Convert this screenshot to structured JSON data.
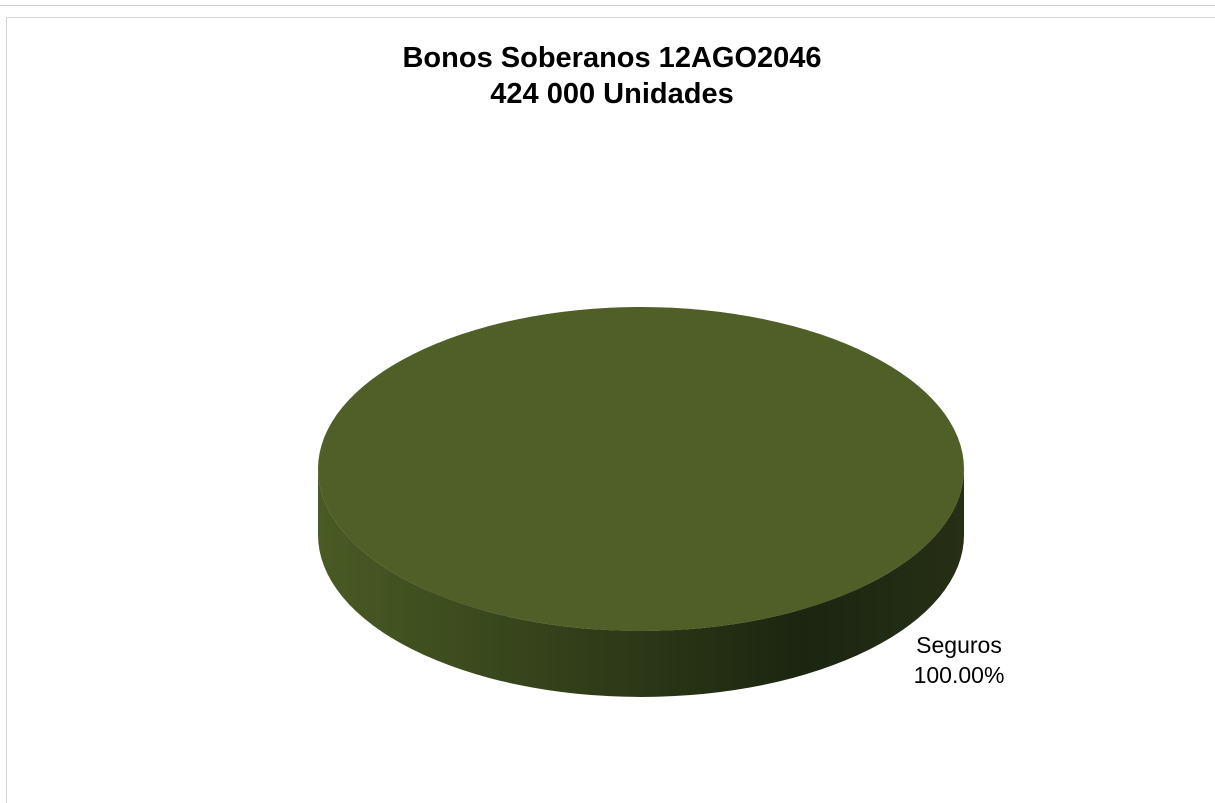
{
  "chart_data": {
    "type": "pie",
    "title": "Bonos Soberanos 12AGO2046",
    "subtitle": "424 000 Unidades",
    "slices": [
      {
        "label": "Seguros",
        "value": 100.0,
        "value_label": "100.00%",
        "color": "#4f5f27"
      }
    ],
    "style": "3d",
    "colors": {
      "top": "#4f5f27",
      "side_light": "#4a5a24",
      "side_dark": "#1b2410",
      "text": "#000000"
    }
  }
}
